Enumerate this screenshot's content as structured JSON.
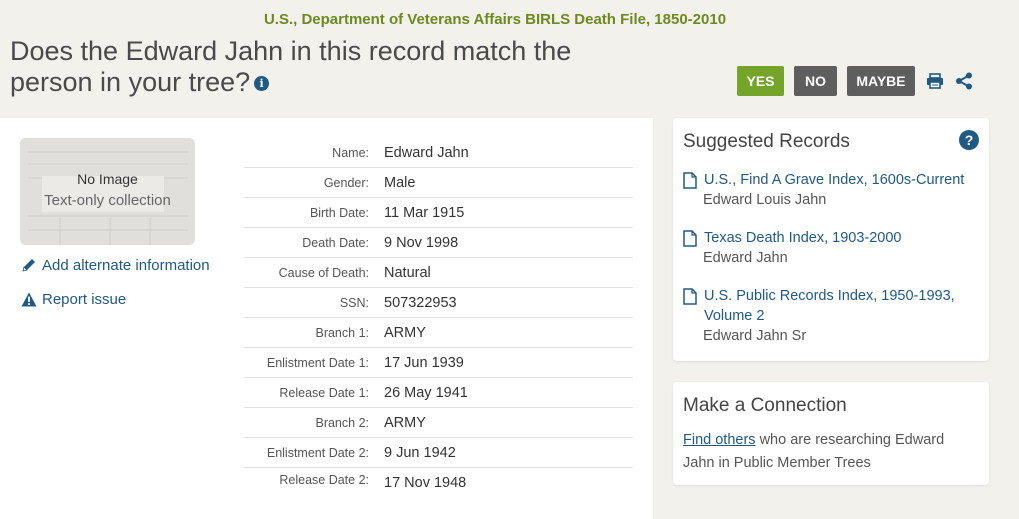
{
  "header": {
    "collection_title": "U.S., Department of Veterans Affairs BIRLS Death File, 1850-2010",
    "question": "Does the Edward Jahn in this record match the person in your tree?",
    "info_icon": "info-icon"
  },
  "actions": {
    "yes_label": "YES",
    "no_label": "NO",
    "maybe_label": "MAYBE",
    "print_icon": "print-icon",
    "share_icon": "share-icon"
  },
  "thumbnail": {
    "line1": "No Image",
    "line2": "Text-only collection"
  },
  "side_links": {
    "add_alternate": "Add alternate information",
    "report_issue": "Report issue"
  },
  "fields": [
    {
      "label": "Name:",
      "value": "Edward Jahn"
    },
    {
      "label": "Gender:",
      "value": "Male"
    },
    {
      "label": "Birth Date:",
      "value": "11 Mar 1915"
    },
    {
      "label": "Death Date:",
      "value": "9 Nov 1998"
    },
    {
      "label": "Cause of Death:",
      "value": "Natural"
    },
    {
      "label": "SSN:",
      "value": "507322953"
    },
    {
      "label": "Branch 1:",
      "value": "ARMY"
    },
    {
      "label": "Enlistment Date 1:",
      "value": "17 Jun 1939"
    },
    {
      "label": "Release Date 1:",
      "value": "26 May 1941"
    },
    {
      "label": "Branch 2:",
      "value": "ARMY"
    },
    {
      "label": "Enlistment Date 2:",
      "value": "9 Jun 1942"
    },
    {
      "label": "Release Date 2:",
      "value": "17 Nov 1948"
    }
  ],
  "suggested": {
    "title": "Suggested Records",
    "help": "?",
    "records": [
      {
        "link": "U.S., Find A Grave Index, 1600s-Current",
        "name": "Edward Louis Jahn"
      },
      {
        "link": "Texas Death Index, 1903-2000",
        "name": "Edward Jahn"
      },
      {
        "link": "U.S. Public Records Index, 1950-1993, Volume 2",
        "name": "Edward Jahn Sr"
      }
    ]
  },
  "connect": {
    "title": "Make a Connection",
    "link_text": "Find others",
    "rest_text": " who are researching Edward Jahn in Public Member Trees"
  },
  "colors": {
    "accent_blue": "#205a84",
    "green": "#74a52a",
    "collection_green": "#6c8a1f"
  }
}
